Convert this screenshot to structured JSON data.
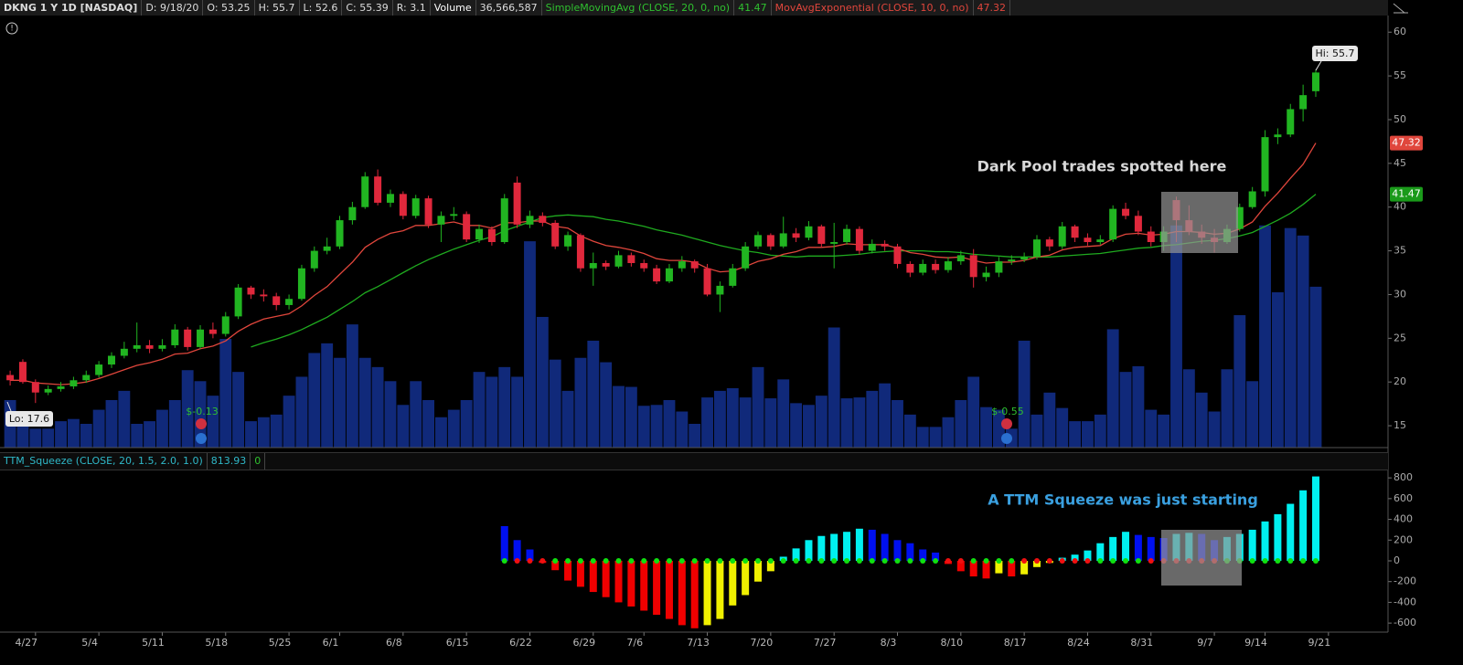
{
  "header": {
    "symbol": "DKNG 1 Y 1D [NASDAQ]",
    "date": "D: 9/18/20",
    "open": "O: 53.25",
    "high": "H: 55.7",
    "low": "L: 52.6",
    "close": "C: 55.39",
    "range": "R: 3.1",
    "volume_title": "Volume",
    "volume": "36,566,587",
    "sma_title": "SimpleMovingAvg (CLOSE, 20, 0, no)",
    "ema_title": "MovAvgExponential (CLOSE, 10, 0, no)"
  },
  "chart_data": [
    {
      "type": "candlestick",
      "open": [
        20.8,
        22.3,
        20.0,
        18.8,
        19.2,
        19.5,
        20.2,
        20.8,
        22.0,
        23.0,
        23.8,
        24.2,
        23.8,
        24.2,
        26.0,
        24.0,
        26.0,
        25.5,
        27.5,
        30.8,
        30.0,
        29.8,
        28.8,
        29.5,
        33.0,
        35.0,
        35.5,
        38.5,
        40.0,
        43.5,
        40.5,
        41.5,
        39.0,
        41.0,
        38.0,
        39.0,
        39.2,
        36.3,
        37.5,
        36.0,
        42.8,
        38.0,
        39.0,
        38.2,
        35.5,
        36.8,
        33.0,
        33.6,
        33.2,
        34.5,
        33.6,
        33.0,
        31.5,
        33.0,
        33.8,
        33.0,
        30.0,
        31.0,
        33.0,
        35.5,
        36.8,
        35.5,
        37.0,
        36.5,
        37.8,
        35.8,
        36.0,
        37.5,
        35.0,
        35.8,
        35.5,
        33.5,
        32.5,
        33.5,
        32.8,
        33.8,
        34.5,
        32.0,
        32.5,
        33.8,
        34.0,
        34.3,
        36.3,
        35.5,
        37.8,
        36.5,
        36.0,
        36.3,
        39.8,
        39.0,
        37.2,
        36.0,
        40.8,
        38.5,
        37.2,
        36.5,
        36.0,
        37.5,
        40.0,
        41.8,
        48.0,
        48.3,
        51.2,
        53.25
      ],
      "high": [
        21.3,
        22.6,
        20.3,
        19.6,
        20.0,
        20.6,
        21.3,
        22.4,
        23.4,
        24.6,
        26.8,
        24.8,
        24.9,
        26.6,
        26.3,
        26.5,
        26.8,
        28.0,
        31.2,
        31.0,
        30.6,
        30.2,
        30.0,
        33.4,
        35.5,
        36.5,
        39.0,
        40.6,
        44.0,
        44.3,
        42.0,
        41.8,
        41.4,
        41.3,
        39.5,
        40.0,
        39.5,
        38.0,
        37.8,
        41.5,
        43.5,
        39.6,
        39.4,
        38.5,
        37.2,
        37.0,
        34.8,
        33.9,
        35.0,
        34.8,
        34.0,
        33.4,
        33.5,
        34.4,
        34.0,
        33.5,
        31.5,
        33.5,
        36.0,
        37.2,
        37.0,
        38.9,
        37.6,
        38.4,
        38.0,
        38.2,
        38.0,
        37.8,
        36.3,
        36.2,
        35.8,
        33.8,
        34.0,
        34.0,
        34.3,
        35.0,
        35.2,
        33.2,
        34.3,
        34.5,
        34.8,
        36.8,
        36.6,
        38.3,
        38.0,
        37.0,
        36.8,
        40.2,
        40.5,
        39.6,
        37.8,
        37.8,
        41.2,
        40.2,
        38.0,
        37.5,
        38.0,
        40.4,
        42.3,
        48.8,
        49.0,
        51.8,
        54.0,
        55.7
      ],
      "low": [
        19.6,
        19.8,
        17.6,
        18.5,
        18.9,
        19.2,
        19.9,
        20.5,
        21.6,
        22.7,
        23.4,
        23.3,
        23.5,
        23.9,
        23.6,
        23.8,
        25.0,
        25.2,
        27.2,
        29.5,
        29.2,
        28.2,
        28.3,
        29.3,
        32.6,
        34.6,
        35.2,
        38.0,
        39.8,
        40.2,
        40.0,
        38.6,
        38.7,
        37.6,
        36.0,
        38.5,
        36.0,
        35.9,
        35.6,
        35.8,
        37.6,
        37.6,
        37.8,
        35.2,
        35.0,
        32.6,
        31.0,
        32.8,
        33.0,
        33.2,
        32.6,
        31.2,
        31.3,
        32.6,
        32.5,
        29.8,
        28.0,
        30.8,
        32.7,
        35.2,
        35.1,
        35.3,
        36.0,
        36.2,
        35.4,
        33.0,
        35.7,
        34.6,
        34.7,
        35.0,
        33.0,
        32.0,
        32.2,
        32.4,
        32.5,
        33.4,
        30.8,
        31.5,
        32.0,
        33.4,
        33.7,
        34.0,
        35.0,
        35.2,
        36.0,
        35.6,
        35.7,
        36.0,
        38.6,
        36.8,
        35.5,
        35.0,
        36.0,
        36.8,
        35.8,
        34.8,
        35.8,
        37.2,
        39.8,
        41.2,
        47.2,
        48.0,
        49.8,
        52.6
      ],
      "close": [
        20.2,
        20.0,
        18.8,
        19.2,
        19.5,
        20.2,
        20.8,
        22.0,
        23.0,
        23.8,
        24.2,
        23.8,
        24.2,
        26.0,
        24.0,
        26.0,
        25.5,
        27.5,
        30.8,
        30.0,
        29.8,
        28.8,
        29.5,
        33.0,
        35.0,
        35.5,
        38.5,
        40.0,
        43.5,
        40.5,
        41.5,
        39.0,
        41.0,
        38.0,
        39.0,
        39.2,
        36.3,
        37.5,
        36.0,
        41.0,
        38.0,
        39.0,
        38.2,
        35.5,
        36.8,
        33.0,
        33.6,
        33.2,
        34.5,
        33.6,
        33.0,
        31.5,
        33.0,
        33.8,
        33.0,
        30.0,
        31.0,
        33.0,
        35.5,
        36.8,
        35.5,
        37.0,
        36.5,
        37.8,
        35.8,
        36.0,
        37.5,
        35.0,
        35.8,
        35.5,
        33.5,
        32.5,
        33.5,
        32.8,
        33.8,
        34.5,
        32.0,
        32.5,
        33.8,
        34.0,
        34.3,
        36.3,
        35.5,
        37.8,
        36.5,
        36.0,
        36.3,
        39.8,
        39.0,
        37.2,
        36.0,
        37.2,
        38.5,
        37.2,
        36.5,
        36.0,
        37.5,
        40.0,
        41.8,
        48.0,
        48.3,
        51.2,
        52.8,
        55.39
      ],
      "up_color": "#21b521",
      "down_color": "#e0283c",
      "volume": {
        "name": "Volume",
        "color": "#10297a",
        "values": [
          10800000,
          7500000,
          4300000,
          4300000,
          6000000,
          6500000,
          5400000,
          8600000,
          10800000,
          12900000,
          5400000,
          6000000,
          8600000,
          10800000,
          17600000,
          15100000,
          11800000,
          24700000,
          17200000,
          6000000,
          6900000,
          7500000,
          11800000,
          16100000,
          21500000,
          23700000,
          20400000,
          28000000,
          20400000,
          18300000,
          15100000,
          9700000,
          15100000,
          10800000,
          6900000,
          8600000,
          10800000,
          17200000,
          16100000,
          18300000,
          16100000,
          46900000,
          29700000,
          20000000,
          12900000,
          20400000,
          24300000,
          19400000,
          14000000,
          13800000,
          9500000,
          9700000,
          10800000,
          8200000,
          5400000,
          11400000,
          12900000,
          13500000,
          11400000,
          18300000,
          11200000,
          15500000,
          10100000,
          9700000,
          11800000,
          27300000,
          11200000,
          11400000,
          12900000,
          14600000,
          10800000,
          7500000,
          4700000,
          4700000,
          6900000,
          10800000,
          16100000,
          9200000,
          8600000,
          4300000,
          24300000,
          7500000,
          12500000,
          9000000,
          6000000,
          6000000,
          7500000,
          26900000,
          17200000,
          18500000,
          8600000,
          7500000,
          50500000,
          17800000,
          12500000,
          8200000,
          17800000,
          30100000,
          15100000,
          50500000,
          35300000,
          49900000,
          48200000,
          36566587
        ]
      },
      "vlim": [
        0,
        98000000
      ],
      "sma": {
        "name": "SimpleMovingAvg",
        "color": "#1faa1f",
        "values": [
          null,
          null,
          null,
          null,
          null,
          null,
          null,
          null,
          null,
          null,
          null,
          null,
          null,
          null,
          null,
          null,
          null,
          null,
          null,
          24.0,
          24.5,
          24.9,
          25.4,
          26.0,
          26.7,
          27.4,
          28.3,
          29.2,
          30.2,
          30.9,
          31.7,
          32.5,
          33.3,
          34.0,
          34.6,
          35.2,
          35.7,
          36.2,
          36.6,
          37.3,
          37.8,
          38.3,
          38.8,
          39.0,
          39.1,
          39.0,
          38.9,
          38.6,
          38.4,
          38.1,
          37.8,
          37.4,
          37.1,
          36.8,
          36.4,
          36.0,
          35.6,
          35.3,
          35.0,
          34.8,
          34.5,
          34.4,
          34.3,
          34.4,
          34.4,
          34.4,
          34.5,
          34.6,
          34.8,
          34.9,
          35.0,
          35.0,
          35.0,
          34.9,
          34.9,
          34.8,
          34.6,
          34.5,
          34.4,
          34.3,
          34.3,
          34.3,
          34.3,
          34.4,
          34.5,
          34.6,
          34.7,
          34.9,
          35.1,
          35.3,
          35.4,
          35.6,
          35.7,
          35.9,
          36.1,
          36.2,
          36.4,
          36.7,
          37.1,
          37.8,
          38.5,
          39.3,
          40.3,
          41.47
        ]
      },
      "ema": {
        "name": "MovAvgExponential",
        "color": "#e0463c",
        "values": [
          20.2,
          20.2,
          19.9,
          19.8,
          19.7,
          19.8,
          20.0,
          20.4,
          20.9,
          21.4,
          21.9,
          22.2,
          22.6,
          23.2,
          23.3,
          23.8,
          24.1,
          24.7,
          25.8,
          26.6,
          27.2,
          27.5,
          27.8,
          28.7,
          29.9,
          30.9,
          32.3,
          33.7,
          35.4,
          36.3,
          37.0,
          37.3,
          37.9,
          37.9,
          38.1,
          38.3,
          37.9,
          37.9,
          37.6,
          38.2,
          38.2,
          38.4,
          38.4,
          37.8,
          37.6,
          36.7,
          36.1,
          35.6,
          35.4,
          35.1,
          34.7,
          34.1,
          33.9,
          33.9,
          33.7,
          33.0,
          32.6,
          32.7,
          33.2,
          33.8,
          34.1,
          34.6,
          34.9,
          35.4,
          35.4,
          35.5,
          35.8,
          35.7,
          35.7,
          35.7,
          35.3,
          34.8,
          34.6,
          34.3,
          34.2,
          34.3,
          33.9,
          33.6,
          33.7,
          33.7,
          33.9,
          34.3,
          34.5,
          35.1,
          35.4,
          35.5,
          35.6,
          36.4,
          36.9,
          37.0,
          36.8,
          36.9,
          37.2,
          37.2,
          37.1,
          36.9,
          37.0,
          37.5,
          38.3,
          40.1,
          41.6,
          43.3,
          44.9,
          47.32
        ]
      },
      "xlim": [
        -0.8,
        108.7
      ],
      "ylim": [
        12.5,
        61.8
      ],
      "yticks": [
        15,
        20,
        25,
        30,
        35,
        40,
        45,
        50,
        55,
        60
      ],
      "hi_label": "Hi: 55.7",
      "lo_label": "Lo: 17.6",
      "events": [
        "$-0.13",
        "$-0.55"
      ],
      "annotation": "Dark Pool trades spotted here"
    },
    {
      "type": "bar",
      "title": "TTM_Squeeze (CLOSE, 20, 1.5, 2.0, 1.0)",
      "signal": 0,
      "values": [
        null,
        null,
        null,
        null,
        null,
        null,
        null,
        null,
        null,
        null,
        null,
        null,
        null,
        null,
        null,
        null,
        null,
        null,
        null,
        null,
        null,
        null,
        null,
        null,
        null,
        null,
        null,
        null,
        null,
        null,
        null,
        null,
        null,
        null,
        null,
        null,
        null,
        null,
        null,
        335,
        200,
        110,
        -20,
        -90,
        -190,
        -250,
        -300,
        -350,
        -400,
        -440,
        -480,
        -520,
        -560,
        -620,
        -650,
        -620,
        -560,
        -430,
        -330,
        -200,
        -100,
        40,
        120,
        200,
        240,
        260,
        280,
        310,
        300,
        260,
        200,
        170,
        110,
        80,
        -30,
        -100,
        -150,
        -170,
        -120,
        -150,
        -130,
        -60,
        -20,
        30,
        60,
        100,
        170,
        230,
        280,
        250,
        230,
        220,
        260,
        270,
        260,
        200,
        230,
        260,
        300,
        380,
        450,
        550,
        680,
        813.93
      ],
      "squeeze": [
        null,
        null,
        null,
        null,
        null,
        null,
        null,
        null,
        null,
        null,
        null,
        null,
        null,
        null,
        null,
        null,
        null,
        null,
        null,
        null,
        null,
        null,
        null,
        null,
        null,
        null,
        null,
        null,
        null,
        null,
        null,
        null,
        null,
        null,
        null,
        null,
        null,
        null,
        null,
        false,
        true,
        true,
        true,
        false,
        false,
        false,
        false,
        false,
        false,
        false,
        false,
        false,
        false,
        false,
        false,
        false,
        false,
        false,
        false,
        false,
        false,
        false,
        false,
        false,
        false,
        false,
        false,
        false,
        false,
        false,
        false,
        false,
        false,
        false,
        true,
        true,
        false,
        false,
        false,
        false,
        true,
        true,
        true,
        true,
        true,
        true,
        false,
        false,
        false,
        false,
        true,
        true,
        true,
        true,
        true,
        true,
        false,
        false,
        false,
        false,
        false,
        false,
        false,
        false
      ],
      "colors": {
        "up_rising": "#00f0f0",
        "up_falling": "#0010f0",
        "down_falling": "#f00000",
        "down_rising": "#f0f000",
        "squeeze_on": "#f01010",
        "squeeze_off": "#10e010"
      },
      "xlim": [
        -0.8,
        108.7
      ],
      "ylim": [
        -687,
        863
      ],
      "yticks": [
        -600,
        -400,
        -200,
        0,
        200,
        400,
        600,
        800
      ],
      "xticks": [
        {
          "value": 2,
          "label": "4/27"
        },
        {
          "value": 7,
          "label": "5/4"
        },
        {
          "value": 12,
          "label": "5/11"
        },
        {
          "value": 17,
          "label": "5/18"
        },
        {
          "value": 22,
          "label": "5/25"
        },
        {
          "value": 26,
          "label": "6/1"
        },
        {
          "value": 31,
          "label": "6/8"
        },
        {
          "value": 36,
          "label": "6/15"
        },
        {
          "value": 41,
          "label": "6/22"
        },
        {
          "value": 46,
          "label": "6/29"
        },
        {
          "value": 50,
          "label": "7/6"
        },
        {
          "value": 55,
          "label": "7/13"
        },
        {
          "value": 60,
          "label": "7/20"
        },
        {
          "value": 65,
          "label": "7/27"
        },
        {
          "value": 70,
          "label": "8/3"
        },
        {
          "value": 75,
          "label": "8/10"
        },
        {
          "value": 80,
          "label": "8/17"
        },
        {
          "value": 85,
          "label": "8/24"
        },
        {
          "value": 90,
          "label": "8/31"
        },
        {
          "value": 95,
          "label": "9/7"
        },
        {
          "value": 99,
          "label": "9/14"
        },
        {
          "value": 104,
          "label": "9/21"
        }
      ],
      "annotation": "A TTM Squeeze was just starting"
    }
  ]
}
